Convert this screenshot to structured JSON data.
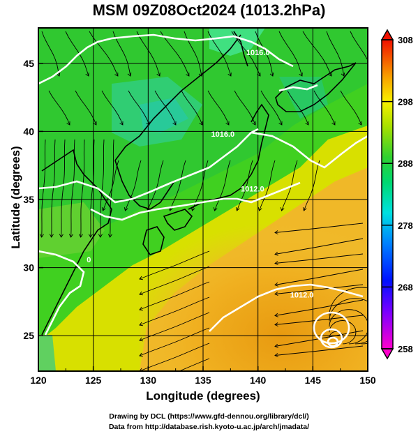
{
  "title": "MSM 09Z08Oct2024 (1013.2hPa)",
  "x_axis": {
    "label": "Longitude (degrees)",
    "min": 120,
    "max": 150,
    "ticks": [
      120,
      125,
      130,
      135,
      140,
      145,
      150
    ]
  },
  "y_axis": {
    "label": "Latitude  (degrees)",
    "min": 22.4,
    "max": 47.6,
    "ticks": [
      25,
      30,
      35,
      40,
      45
    ]
  },
  "colorbar": {
    "min": 258,
    "max": 308,
    "ticks": [
      258,
      268,
      278,
      288,
      298,
      308
    ]
  },
  "isobar_labels": [
    {
      "text": "1016.0",
      "lon": 140.0,
      "lat": 45.6
    },
    {
      "text": "1016.0",
      "lon": 136.8,
      "lat": 39.6
    },
    {
      "text": "1012.0",
      "lon": 139.5,
      "lat": 35.6
    },
    {
      "text": "1012.0",
      "lon": 144.0,
      "lat": 27.8
    },
    {
      "text": "0",
      "lon": 124.6,
      "lat": 30.4
    }
  ],
  "footer": {
    "line1": "Drawing by DCL (https://www.gfd-dennou.org/library/dcl/)",
    "line2": "Data from http://database.rish.kyoto-u.ac.jp/arch/jmadata/"
  }
}
